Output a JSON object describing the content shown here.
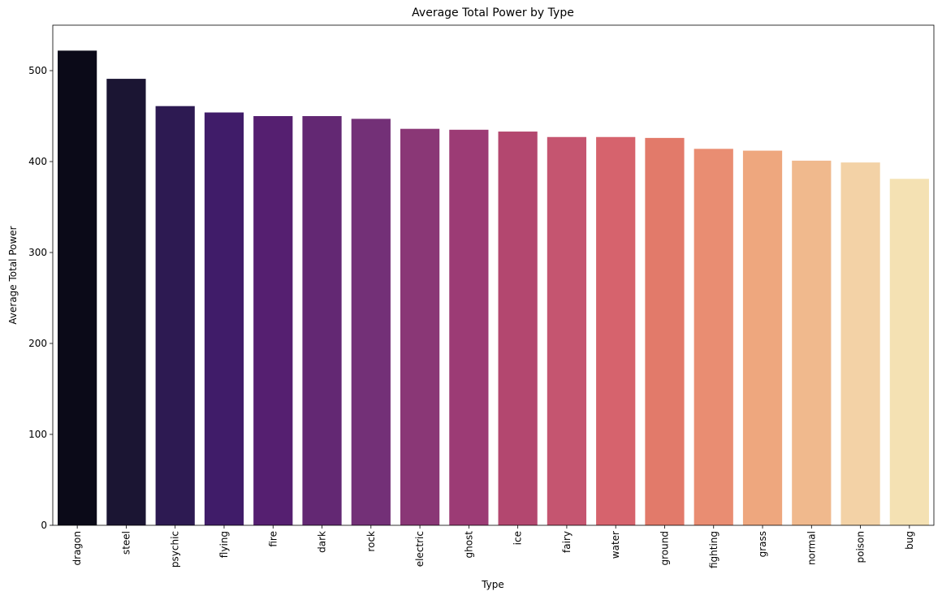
{
  "chart_data": {
    "type": "bar",
    "title": "Average Total Power by Type",
    "xlabel": "Type",
    "ylabel": "Average Total Power",
    "ylim": [
      0,
      550
    ],
    "yticks": [
      0,
      100,
      200,
      300,
      400,
      500
    ],
    "grid": false,
    "categories": [
      "dragon",
      "steel",
      "psychic",
      "flying",
      "fire",
      "dark",
      "rock",
      "electric",
      "ghost",
      "ice",
      "fairy",
      "water",
      "ground",
      "fighting",
      "grass",
      "normal",
      "poison",
      "bug"
    ],
    "values": [
      522,
      491,
      461,
      454,
      450,
      450,
      447,
      436,
      435,
      433,
      427,
      427,
      426,
      414,
      412,
      401,
      399,
      381
    ],
    "colors": [
      "#0b0a18",
      "#1b1533",
      "#2d1a52",
      "#401c69",
      "#551f70",
      "#632873",
      "#733077",
      "#8a3776",
      "#9c3b75",
      "#b3476f",
      "#c55570",
      "#d6636d",
      "#e27a6a",
      "#e98d72",
      "#eea77e",
      "#f0b98d",
      "#f3d2a6",
      "#f4e1b3"
    ]
  }
}
